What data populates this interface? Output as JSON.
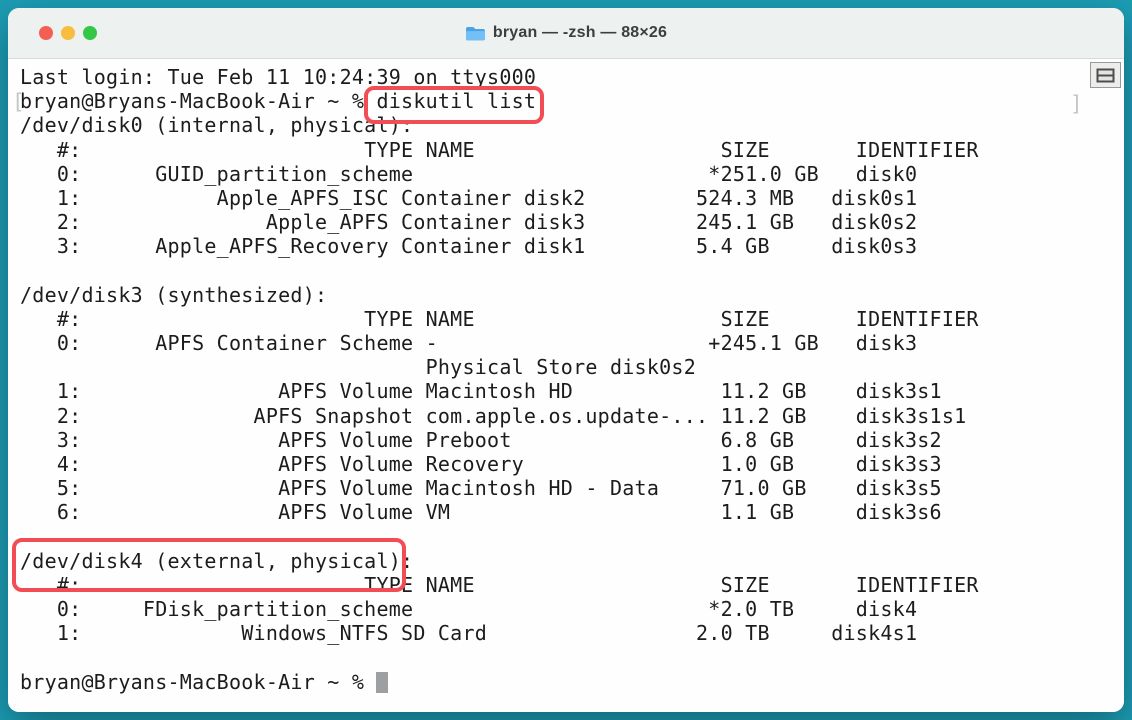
{
  "window": {
    "title": "bryan — -zsh — 88×26",
    "titlebar_icon": "folder-icon",
    "traffic_lights": {
      "close": "close",
      "minimize": "minimize",
      "zoom": "zoom"
    },
    "colors": {
      "desktop_bg": "#1c9db5",
      "titlebar_bg": "#edf2f0",
      "annotation_red": "#f24d55",
      "cursor_gray": "#9d9fa0"
    }
  },
  "terminal": {
    "columns": 88,
    "rows": 26,
    "marks": {
      "open": "[",
      "close": "]"
    },
    "lines": [
      "Last login: Tue Feb 11 10:24:39 on ttys000",
      "bryan@Bryans-MacBook-Air ~ % diskutil list",
      "/dev/disk0 (internal, physical):",
      "   #:                       TYPE NAME                    SIZE       IDENTIFIER",
      "   0:      GUID_partition_scheme                        *251.0 GB   disk0",
      "   1:           Apple_APFS_ISC Container disk2         524.3 MB   disk0s1",
      "   2:               Apple_APFS Container disk3         245.1 GB   disk0s2",
      "   3:      Apple_APFS_Recovery Container disk1         5.4 GB     disk0s3",
      "",
      "/dev/disk3 (synthesized):",
      "   #:                       TYPE NAME                    SIZE       IDENTIFIER",
      "   0:      APFS Container Scheme -                      +245.1 GB   disk3",
      "                                 Physical Store disk0s2",
      "   1:                APFS Volume Macintosh HD            11.2 GB    disk3s1",
      "   2:              APFS Snapshot com.apple.os.update-... 11.2 GB    disk3s1s1",
      "   3:                APFS Volume Preboot                 6.8 GB     disk3s2",
      "   4:                APFS Volume Recovery                1.0 GB     disk3s3",
      "   5:                APFS Volume Macintosh HD - Data     71.0 GB    disk3s5",
      "   6:                APFS Volume VM                      1.1 GB     disk3s6",
      "",
      "/dev/disk4 (external, physical):",
      "   #:                       TYPE NAME                    SIZE       IDENTIFIER",
      "   0:     FDisk_partition_scheme                        *2.0 TB     disk4",
      "   1:             Windows_NTFS SD Card                 2.0 TB     disk4s1",
      ""
    ],
    "prompt": "bryan@Bryans-MacBook-Air ~ % ",
    "split_button": "split-pane-icon"
  },
  "annotations": {
    "color": "#f24d55",
    "boxes": [
      {
        "target": "diskutil list"
      },
      {
        "target": "/dev/disk4 (external, physical)"
      }
    ]
  }
}
